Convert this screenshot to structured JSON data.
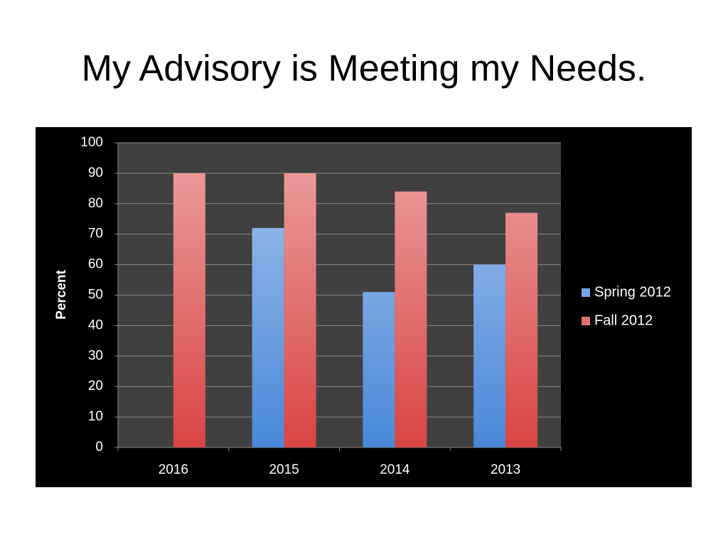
{
  "title": "My Advisory is Meeting my Needs.",
  "chart_data": {
    "type": "bar",
    "y_label": "Percent",
    "categories": [
      "2016",
      "2015",
      "2014",
      "2013"
    ],
    "series": [
      {
        "name": "Spring 2012",
        "color": "#4a88d8",
        "values": [
          null,
          72,
          51,
          60
        ]
      },
      {
        "name": "Fall 2012",
        "color": "#d94444",
        "values": [
          90,
          90,
          84,
          77
        ]
      }
    ],
    "ylim": [
      0,
      100
    ],
    "yticks": [
      0,
      10,
      20,
      30,
      40,
      50,
      60,
      70,
      80,
      90,
      100
    ],
    "grid": true,
    "legend": "right"
  }
}
